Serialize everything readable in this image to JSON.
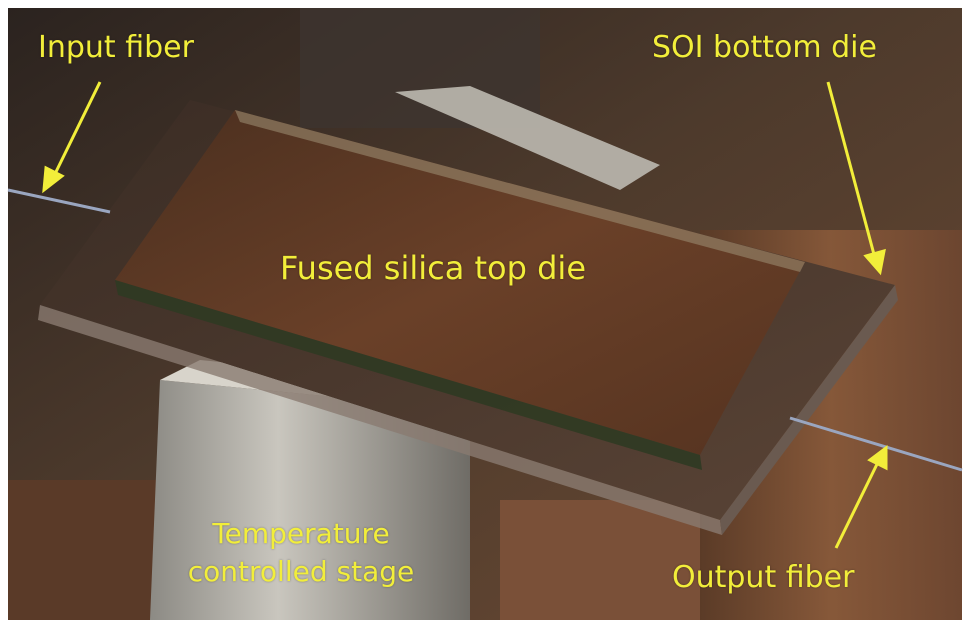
{
  "labels": {
    "input_fiber": "Input fiber",
    "soi_bottom_die": "SOI bottom die",
    "fused_silica_top_die": "Fused silica top die",
    "temperature_line1": "Temperature",
    "temperature_line2": "controlled stage",
    "output_fiber": "Output fiber"
  },
  "colors": {
    "label": "#f2ee3a",
    "arrow": "#f2ee3a",
    "die_top": "#5e3a22",
    "background": "#3a2a20"
  }
}
